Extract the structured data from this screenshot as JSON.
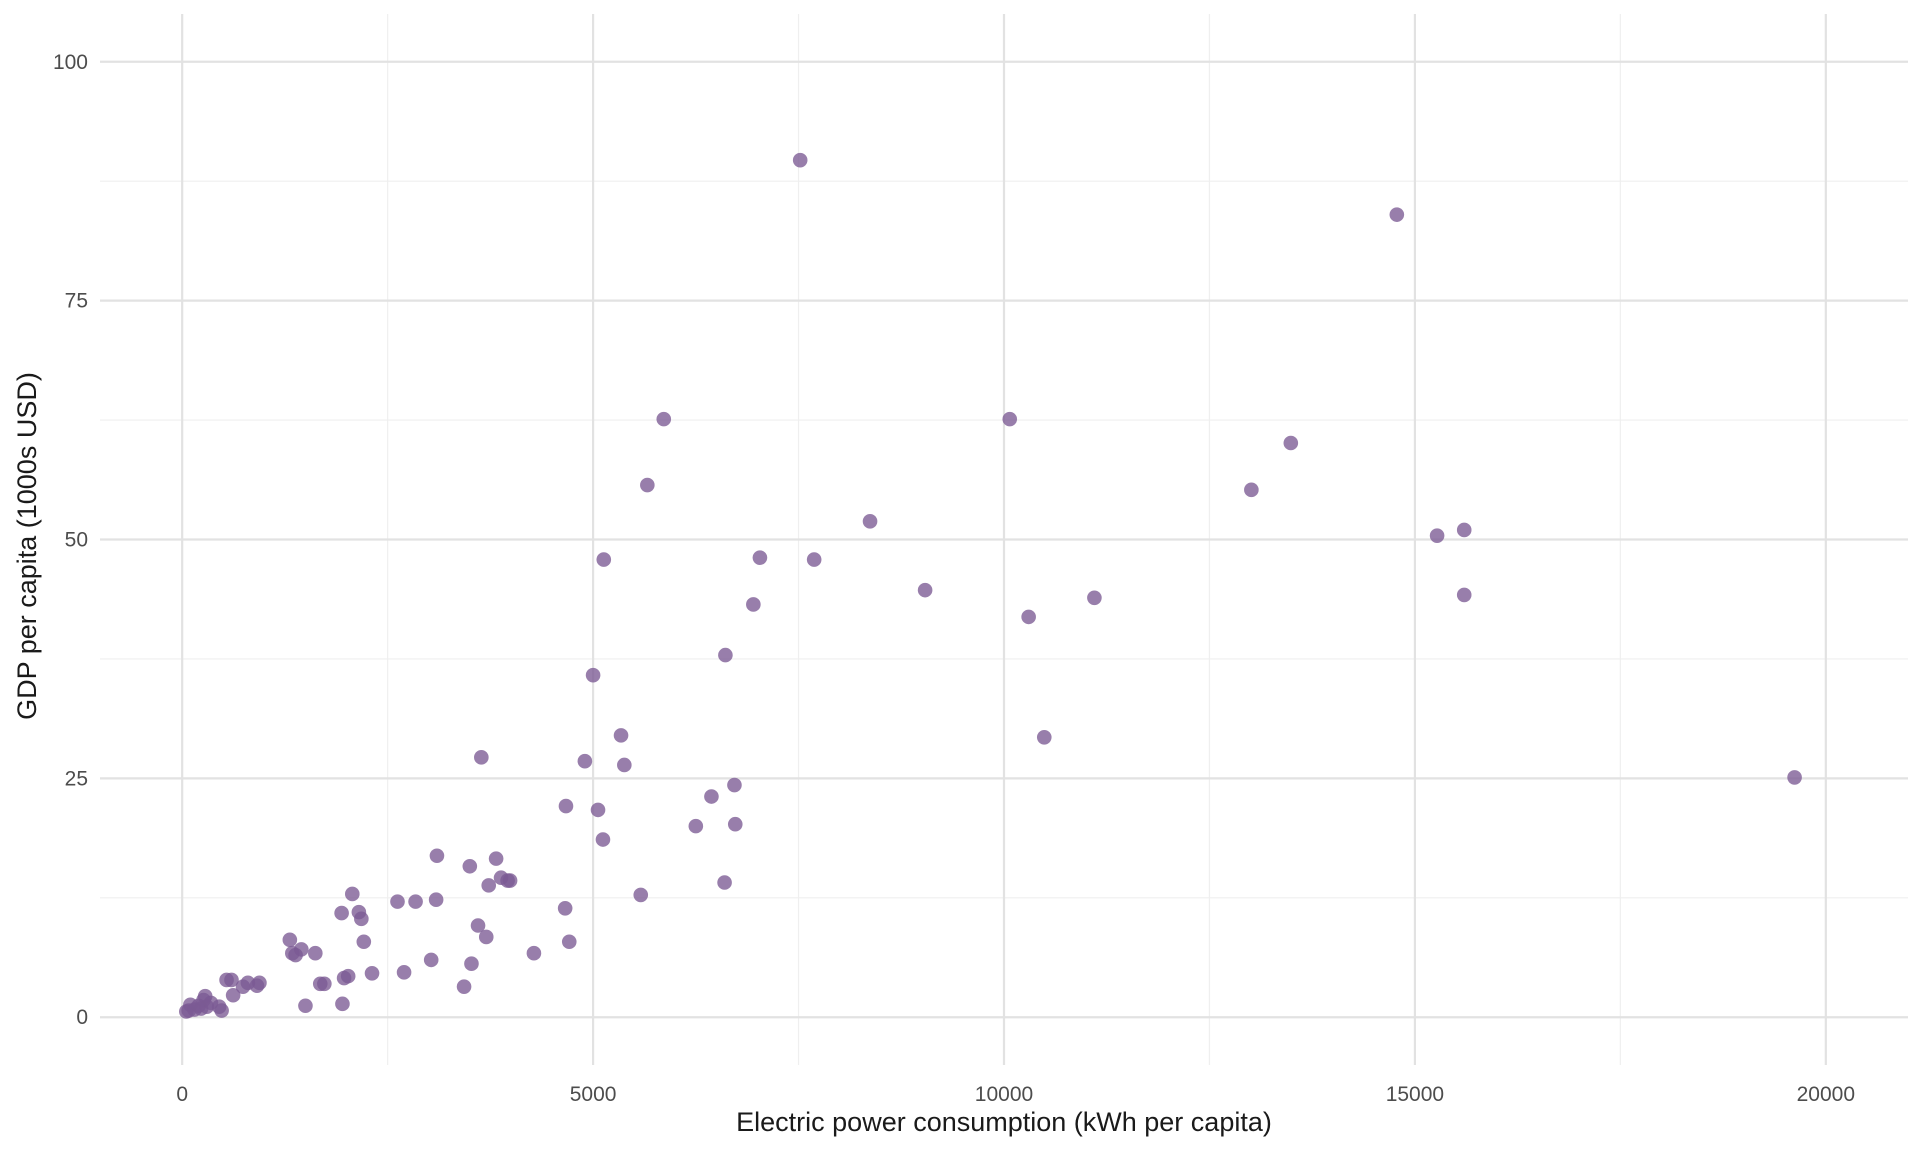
{
  "chart_data": {
    "type": "scatter",
    "title": "",
    "xlabel": "Electric power consumption (kWh per capita)",
    "ylabel": "GDP per capita (1000s USD)",
    "xlim": [
      -1000,
      21000
    ],
    "ylim": [
      -5,
      105
    ],
    "x_ticks": [
      0,
      5000,
      10000,
      15000,
      20000
    ],
    "x_tick_labels": [
      "0",
      "5000",
      "10000",
      "15000",
      "20000"
    ],
    "y_ticks": [
      0,
      25,
      50,
      75,
      100
    ],
    "y_tick_labels": [
      "0",
      "25",
      "50",
      "75",
      "100"
    ],
    "grid": true,
    "legend": "none",
    "point_color": "#7b5a93",
    "series": [
      {
        "points": [
          [
            50,
            0.6
          ],
          [
            80,
            0.7
          ],
          [
            100,
            1.3
          ],
          [
            150,
            0.8
          ],
          [
            200,
            1.2
          ],
          [
            230,
            0.9
          ],
          [
            260,
            1.8
          ],
          [
            280,
            2.2
          ],
          [
            300,
            1.1
          ],
          [
            350,
            1.5
          ],
          [
            450,
            1.1
          ],
          [
            480,
            0.7
          ],
          [
            540,
            3.9
          ],
          [
            600,
            3.9
          ],
          [
            620,
            2.3
          ],
          [
            740,
            3.2
          ],
          [
            800,
            3.6
          ],
          [
            910,
            3.3
          ],
          [
            940,
            3.6
          ],
          [
            1310,
            8.1
          ],
          [
            1340,
            6.7
          ],
          [
            1380,
            6.5
          ],
          [
            1450,
            7.1
          ],
          [
            1500,
            1.2
          ],
          [
            1620,
            6.7
          ],
          [
            1680,
            3.5
          ],
          [
            1730,
            3.5
          ],
          [
            1940,
            10.9
          ],
          [
            1950,
            1.4
          ],
          [
            1970,
            4.1
          ],
          [
            2020,
            4.3
          ],
          [
            2070,
            12.9
          ],
          [
            2150,
            11.0
          ],
          [
            2180,
            10.3
          ],
          [
            2210,
            7.9
          ],
          [
            2310,
            4.6
          ],
          [
            2620,
            12.1
          ],
          [
            2700,
            4.7
          ],
          [
            2840,
            12.1
          ],
          [
            3030,
            6.0
          ],
          [
            3090,
            12.3
          ],
          [
            3100,
            16.9
          ],
          [
            3430,
            3.2
          ],
          [
            3500,
            15.8
          ],
          [
            3520,
            5.6
          ],
          [
            3600,
            9.6
          ],
          [
            3640,
            27.2
          ],
          [
            3700,
            8.4
          ],
          [
            3730,
            13.8
          ],
          [
            3820,
            16.6
          ],
          [
            3880,
            14.6
          ],
          [
            3960,
            14.3
          ],
          [
            3990,
            14.3
          ],
          [
            4280,
            6.7
          ],
          [
            4660,
            11.4
          ],
          [
            4670,
            22.1
          ],
          [
            4710,
            7.9
          ],
          [
            4900,
            26.8
          ],
          [
            5000,
            35.8
          ],
          [
            5060,
            21.7
          ],
          [
            5120,
            18.6
          ],
          [
            5130,
            47.9
          ],
          [
            5340,
            29.5
          ],
          [
            5380,
            26.4
          ],
          [
            5580,
            12.8
          ],
          [
            5660,
            55.7
          ],
          [
            5860,
            62.6
          ],
          [
            6250,
            20.0
          ],
          [
            6440,
            23.1
          ],
          [
            6600,
            14.1
          ],
          [
            6610,
            37.9
          ],
          [
            6720,
            24.3
          ],
          [
            6730,
            20.2
          ],
          [
            6950,
            43.2
          ],
          [
            7030,
            48.1
          ],
          [
            7520,
            89.7
          ],
          [
            7690,
            47.9
          ],
          [
            8370,
            51.9
          ],
          [
            9040,
            44.7
          ],
          [
            10070,
            62.6
          ],
          [
            10300,
            41.9
          ],
          [
            10490,
            29.3
          ],
          [
            11100,
            43.9
          ],
          [
            13010,
            55.2
          ],
          [
            13490,
            60.1
          ],
          [
            14780,
            84.0
          ],
          [
            15270,
            50.4
          ],
          [
            15600,
            51.0
          ],
          [
            15600,
            44.2
          ],
          [
            19620,
            25.1
          ]
        ]
      }
    ]
  }
}
